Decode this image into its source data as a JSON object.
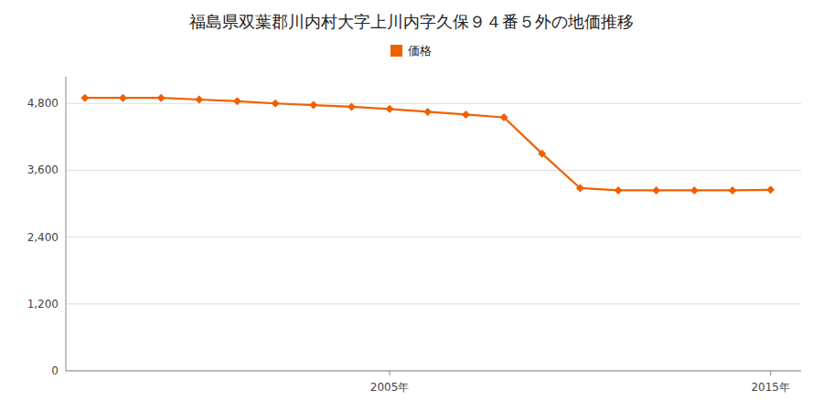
{
  "chart_data": {
    "type": "line",
    "title": "福島県双葉郡川内村大字上川内字久保９４番５外の地価推移",
    "x": [
      1997,
      1998,
      1999,
      2000,
      2001,
      2002,
      2003,
      2004,
      2005,
      2006,
      2007,
      2008,
      2009,
      2010,
      2011,
      2012,
      2013,
      2014,
      2015
    ],
    "series": [
      {
        "name": "価格",
        "color": "#f06000",
        "marker": "diamond",
        "values": [
          4900,
          4900,
          4900,
          4870,
          4840,
          4800,
          4770,
          4740,
          4700,
          4650,
          4600,
          4550,
          3900,
          3280,
          3240,
          3240,
          3240,
          3240,
          3250
        ]
      }
    ],
    "xlim": [
      1996.5,
      2015.8
    ],
    "xticks": [
      {
        "value": 2005,
        "label": "2005年"
      },
      {
        "value": 2015,
        "label": "2015年"
      }
    ],
    "ylim": [
      0,
      5280
    ],
    "yticks": [
      0,
      {
        "value": 1200,
        "label": "1,200"
      },
      {
        "value": 2400,
        "label": "2,400"
      },
      {
        "value": 3600,
        "label": "3,600"
      },
      {
        "value": 4800,
        "label": "4,800"
      }
    ],
    "grid": true,
    "legend": "top"
  }
}
